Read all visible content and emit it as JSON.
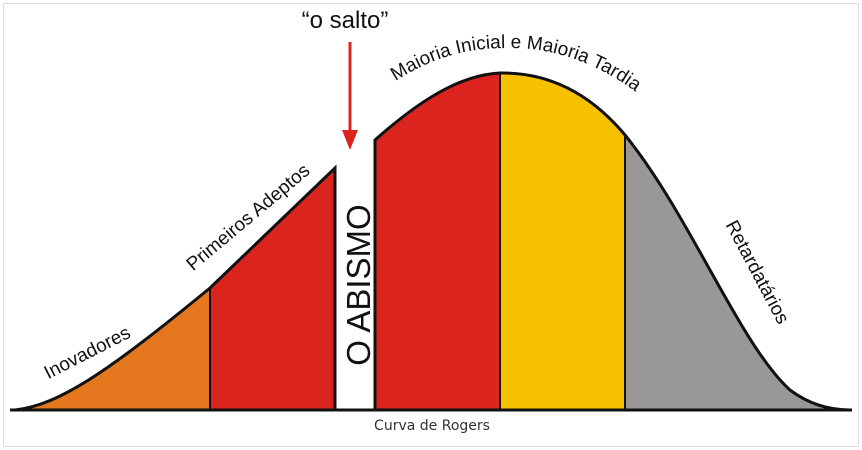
{
  "diagram": {
    "jump_label": "“o salto”",
    "chasm_label": "O ABISMO",
    "segments": {
      "innovators": "Inovadores",
      "early_adopters": "Primeiros Adeptos",
      "majority": "Maioria Inicial e Maioria Tardia",
      "laggards": "Retardatários"
    },
    "caption": "Curva de Rogers"
  }
}
